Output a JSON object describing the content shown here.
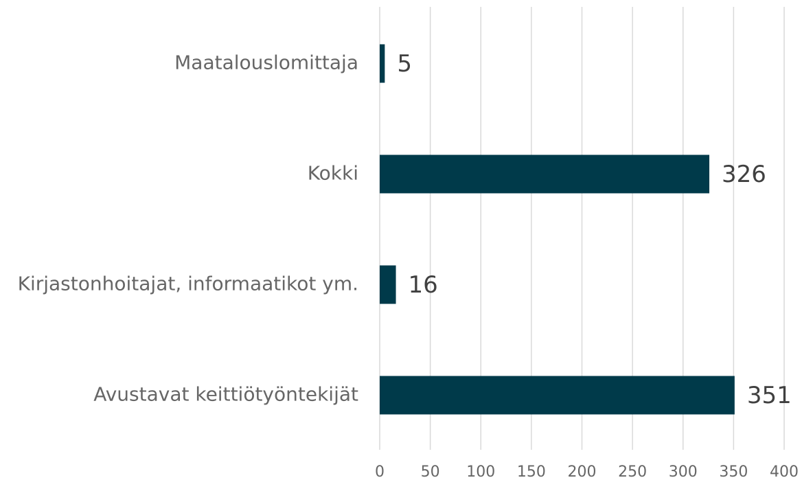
{
  "chart_data": {
    "type": "bar",
    "orientation": "horizontal",
    "categories": [
      "Maatalouslomittaja",
      "Kokki",
      "Kirjastonhoitajat, informaatikot ym.",
      "Avustavat keittiötyöntekijät"
    ],
    "values": [
      5,
      326,
      16,
      351
    ],
    "color": "#003a4a",
    "xlim": [
      0,
      400
    ],
    "xticks": [
      0,
      50,
      100,
      150,
      200,
      250,
      300,
      350,
      400
    ],
    "grid": true
  }
}
